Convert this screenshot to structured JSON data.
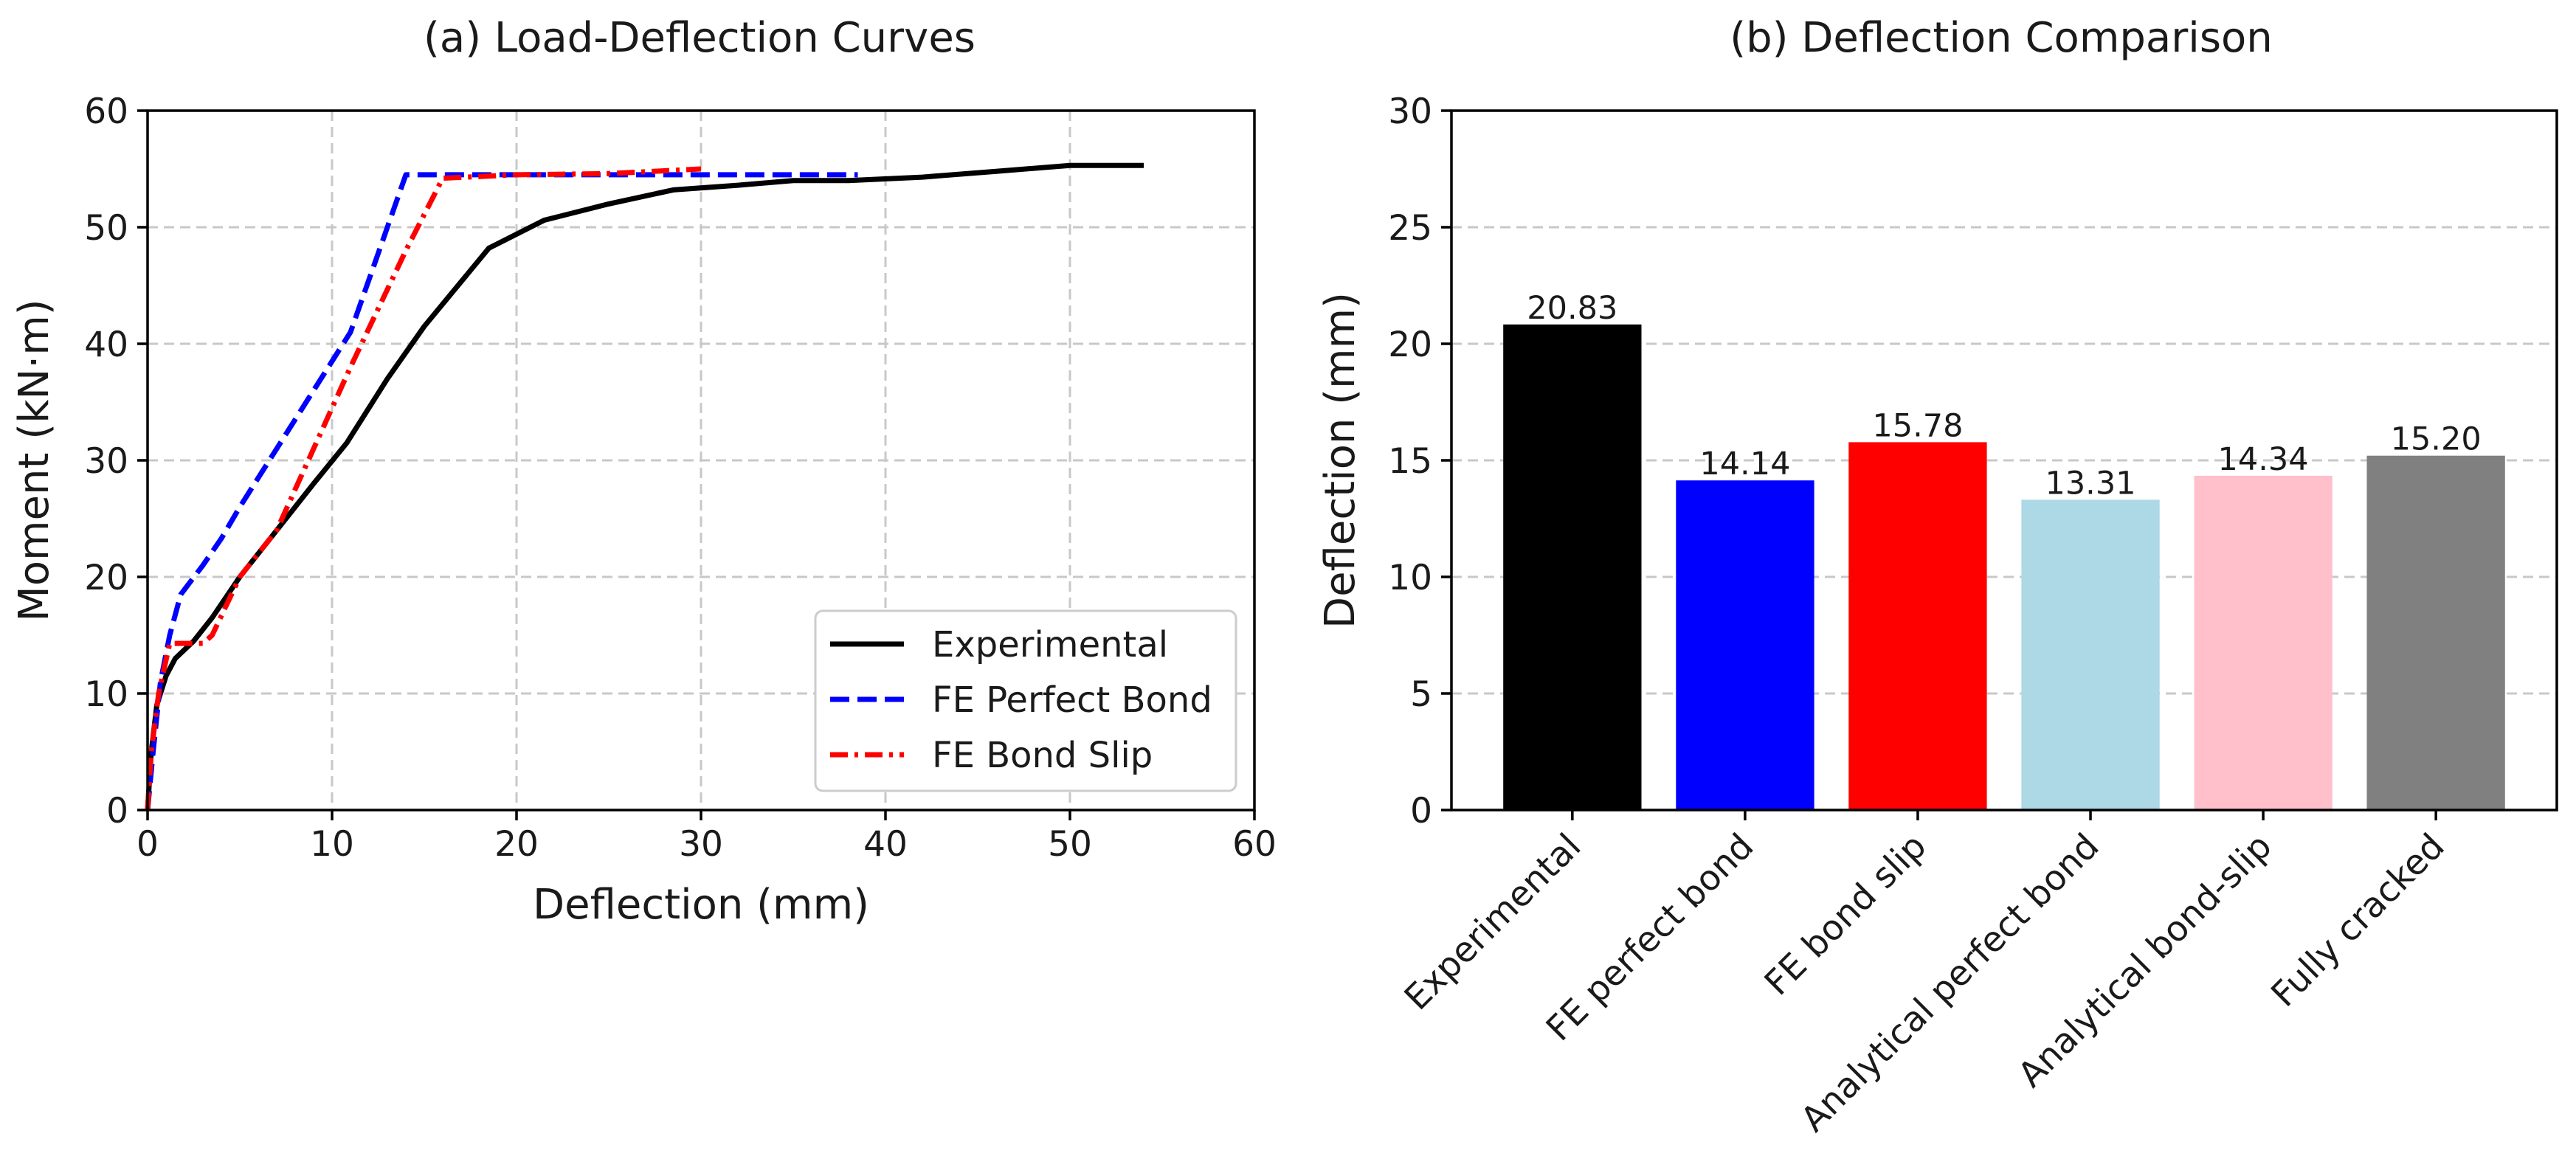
{
  "chart_data": [
    {
      "type": "line",
      "title": "(a) Load-Deflection Curves",
      "xlabel": "Deflection (mm)",
      "ylabel": "Moment (kN·m)",
      "xlim": [
        0,
        60
      ],
      "ylim": [
        0,
        60
      ],
      "xticks": [
        "0",
        "10",
        "20",
        "30",
        "40",
        "50",
        "60"
      ],
      "yticks": [
        "0",
        "10",
        "20",
        "30",
        "40",
        "50",
        "60"
      ],
      "grid": true,
      "legend_position": "bottom-right",
      "series": [
        {
          "name": "Experimental",
          "color": "#000000",
          "style": "solid",
          "x": [
            0,
            0.2,
            0.5,
            1,
            1.5,
            2.5,
            3.5,
            5,
            7,
            9,
            10.8,
            13,
            15,
            18.5,
            21.5,
            25,
            28.5,
            32,
            35,
            38,
            42,
            46,
            50,
            54
          ],
          "y": [
            0,
            5,
            9,
            11.5,
            13,
            14.5,
            16.5,
            20,
            24,
            28,
            31.5,
            37,
            41.5,
            48.2,
            50.6,
            52,
            53.2,
            53.6,
            54,
            54,
            54.3,
            54.8,
            55.3,
            55.3
          ]
        },
        {
          "name": "FE Perfect Bond",
          "color": "#0000ff",
          "style": "dashed",
          "x": [
            0,
            0.3,
            0.7,
            1.2,
            1.8,
            3,
            4,
            5,
            7,
            9,
            11,
            14,
            16,
            20,
            30,
            38.5
          ],
          "y": [
            0,
            5,
            11,
            15,
            18.5,
            21,
            23.3,
            26,
            31,
            36,
            41,
            54.5,
            54.5,
            54.5,
            54.5,
            54.5
          ]
        },
        {
          "name": "FE Bond Slip",
          "color": "#ff0000",
          "style": "dashdot",
          "x": [
            0,
            0.2,
            0.6,
            1.2,
            2,
            3,
            3.5,
            5,
            7,
            9,
            11,
            14,
            16,
            20,
            25,
            30
          ],
          "y": [
            0,
            5,
            10,
            14.3,
            14.3,
            14.3,
            15,
            20,
            24,
            31,
            38,
            48,
            54.2,
            54.5,
            54.6,
            55
          ]
        }
      ]
    },
    {
      "type": "bar",
      "title": "(b) Deflection Comparison",
      "xlabel": "",
      "ylabel": "Deflection (mm)",
      "ylim": [
        0,
        30
      ],
      "yticks": [
        "0",
        "5",
        "10",
        "15",
        "20",
        "25",
        "30"
      ],
      "grid": true,
      "categories": [
        "Experimental",
        "FE perfect bond",
        "FE bond slip",
        "Analytical perfect bond",
        "Analytical bond-slip",
        "Fully cracked"
      ],
      "values": [
        20.83,
        14.14,
        15.78,
        13.31,
        14.34,
        15.2
      ],
      "value_labels": [
        "20.83",
        "14.14",
        "15.78",
        "13.31",
        "14.34",
        "15.20"
      ],
      "colors": [
        "#000000",
        "#0000ff",
        "#ff0000",
        "#add8e6",
        "#ffc0cb",
        "#808080"
      ]
    }
  ]
}
